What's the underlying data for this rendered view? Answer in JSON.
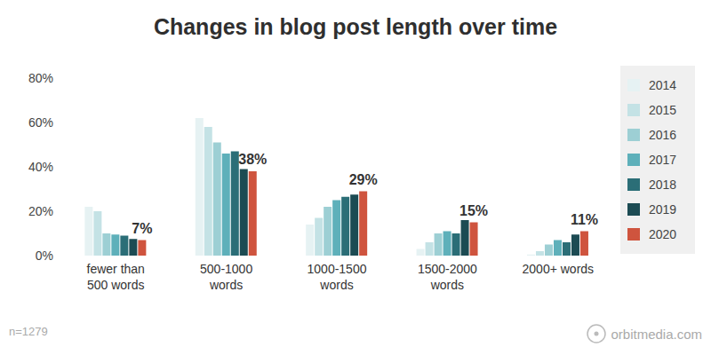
{
  "chart_data": {
    "type": "bar",
    "title": "Changes in blog post length over time",
    "categories": [
      "fewer than 500 words",
      "500-1000 words",
      "1000-1500 words",
      "1500-2000 words",
      "2000+ words"
    ],
    "series": [
      {
        "name": "2014",
        "color": "#e6f2f3",
        "values": [
          22,
          62,
          14,
          3,
          0.5
        ]
      },
      {
        "name": "2015",
        "color": "#c4e2e5",
        "values": [
          20,
          58,
          17,
          6,
          2
        ]
      },
      {
        "name": "2016",
        "color": "#9dcfd4",
        "values": [
          10,
          51,
          22,
          10,
          5
        ]
      },
      {
        "name": "2017",
        "color": "#5eb0ba",
        "values": [
          9.5,
          46,
          25,
          11,
          7
        ]
      },
      {
        "name": "2018",
        "color": "#2b6e77",
        "values": [
          9,
          47,
          26.5,
          10,
          6
        ]
      },
      {
        "name": "2019",
        "color": "#1c4b53",
        "values": [
          7.5,
          39,
          27.5,
          16,
          9.5
        ]
      },
      {
        "name": "2020",
        "color": "#cf543e",
        "values": [
          7,
          38,
          29,
          15,
          11
        ],
        "data_labels": true,
        "value_labels": [
          "7%",
          "38%",
          "29%",
          "15%",
          "11%"
        ]
      }
    ],
    "ylim": [
      0,
      80
    ],
    "yticks": [
      {
        "value": 0,
        "label": "0%"
      },
      {
        "value": 20,
        "label": "20%"
      },
      {
        "value": 40,
        "label": "40%"
      },
      {
        "value": 60,
        "label": "60%"
      },
      {
        "value": 80,
        "label": "80%"
      }
    ],
    "grid": false,
    "legend": "right",
    "annotations": [
      "n=1279",
      "orbitmedia.com"
    ]
  }
}
